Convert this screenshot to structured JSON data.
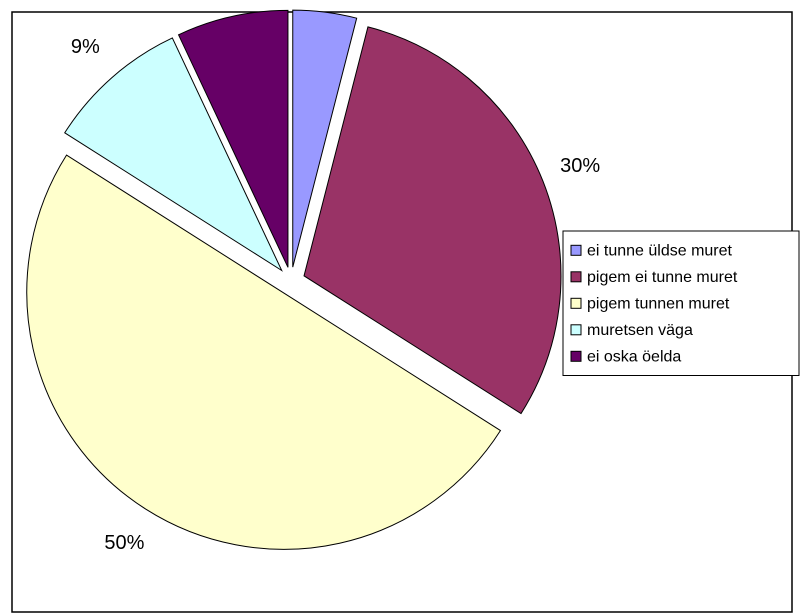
{
  "chart_data": {
    "type": "pie",
    "exploded": true,
    "slices": [
      {
        "label": "ei tunne üldse muret",
        "value": 4,
        "value_label": "4%",
        "color": "#9999FF"
      },
      {
        "label": "pigem ei tunne muret",
        "value": 30,
        "value_label": "30%",
        "color": "#993366"
      },
      {
        "label": "pigem tunnen muret",
        "value": 50,
        "value_label": "50%",
        "color": "#FFFFCC"
      },
      {
        "label": "muretsen väga",
        "value": 9,
        "value_label": "9%",
        "color": "#CCFFFF"
      },
      {
        "label": "ei oska öelda",
        "value": 7,
        "value_label": "7%",
        "color": "#660066"
      }
    ],
    "legend": {
      "placement": "right"
    },
    "title": ""
  }
}
